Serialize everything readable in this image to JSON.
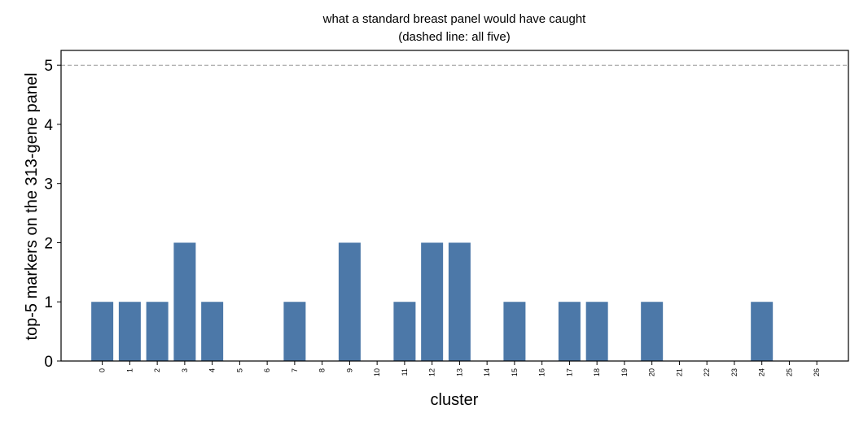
{
  "chart_data": {
    "type": "bar",
    "title": "what a standard breast panel would have caught",
    "subtitle": "(dashed line: all five)",
    "xlabel": "cluster",
    "ylabel": "top-5 markers on the 313-gene panel",
    "categories": [
      "0",
      "1",
      "2",
      "3",
      "4",
      "5",
      "6",
      "7",
      "8",
      "9",
      "10",
      "11",
      "12",
      "13",
      "14",
      "15",
      "16",
      "17",
      "18",
      "19",
      "20",
      "21",
      "22",
      "23",
      "24",
      "25",
      "26"
    ],
    "values": [
      1,
      1,
      1,
      2,
      1,
      0,
      0,
      1,
      0,
      2,
      0,
      1,
      2,
      2,
      0,
      1,
      0,
      1,
      1,
      0,
      1,
      0,
      0,
      0,
      1,
      0,
      0
    ],
    "ylim": [
      0,
      5.25
    ],
    "yticks": [
      "0",
      "1",
      "2",
      "3",
      "4",
      "5"
    ],
    "reference_line": {
      "value": 5,
      "style": "dashed",
      "color": "#999999"
    },
    "bar_color": "#4c78a8",
    "grid": false,
    "legend": "none"
  }
}
